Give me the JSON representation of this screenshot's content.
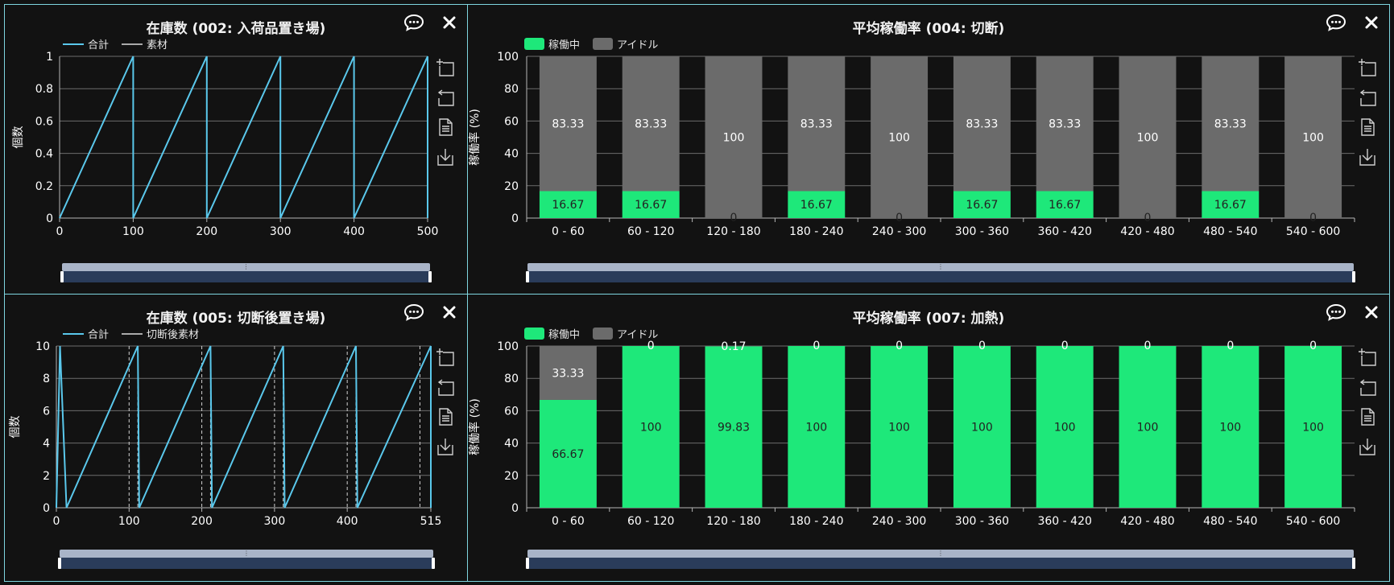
{
  "icons": {
    "comment": "comment-icon",
    "close": "close-icon",
    "zoom": "zoom-icon",
    "reset": "reset-icon",
    "data": "data-view-icon",
    "save": "save-image-icon"
  },
  "colors": {
    "line": "#5ac8ec",
    "running": "#1ee87a",
    "idle": "#6b6b6b",
    "border": "#7fd6e0"
  },
  "panels": [
    {
      "title": "在庫数 (002: 入荷品置き場)",
      "legend": [
        {
          "label": "合計",
          "color": "#5ac8ec"
        },
        {
          "label": "素材",
          "color": "#aaaaaa"
        }
      ],
      "chart_data": {
        "type": "line",
        "ylabel": "個数",
        "xlim": [
          0,
          500
        ],
        "ylim": [
          0,
          1
        ],
        "xticks": [
          0,
          100,
          200,
          300,
          400,
          500
        ],
        "yticks": [
          0,
          0.2,
          0.4,
          0.6,
          0.8,
          1
        ],
        "series": [
          {
            "name": "合計",
            "points": [
              [
                0,
                0
              ],
              [
                100,
                1
              ],
              [
                100,
                0
              ],
              [
                200,
                1
              ],
              [
                200,
                0
              ],
              [
                300,
                1
              ],
              [
                300,
                0
              ],
              [
                400,
                1
              ],
              [
                400,
                0
              ],
              [
                500,
                1
              ],
              [
                500,
                0
              ]
            ]
          }
        ],
        "vlines": []
      }
    },
    {
      "title": "平均稼働率 (004: 切断)",
      "legend": [
        {
          "label": "稼働中",
          "color": "#1ee87a"
        },
        {
          "label": "アイドル",
          "color": "#6b6b6b"
        }
      ],
      "chart_data": {
        "type": "bar",
        "ylabel": "稼働率 (%)",
        "ylim": [
          0,
          100
        ],
        "yticks": [
          0,
          20,
          40,
          60,
          80,
          100
        ],
        "categories": [
          "0 - 60",
          "60 - 120",
          "120 - 180",
          "180 - 240",
          "240 - 300",
          "300 - 360",
          "360 - 420",
          "420 - 480",
          "480 - 540",
          "540 - 600"
        ],
        "series": [
          {
            "name": "稼働中",
            "values": [
              16.67,
              16.67,
              0,
              16.67,
              0,
              16.67,
              16.67,
              0,
              16.67,
              0
            ],
            "labels": [
              "16.67",
              "16.67",
              "0",
              "16.67",
              "0",
              "16.67",
              "16.67",
              "0",
              "16.67",
              "0"
            ]
          },
          {
            "name": "アイドル",
            "values": [
              83.33,
              83.33,
              100,
              83.33,
              100,
              83.33,
              83.33,
              100,
              83.33,
              100
            ],
            "labels": [
              "83.33",
              "83.33",
              "100",
              "83.33",
              "100",
              "83.33",
              "83.33",
              "100",
              "83.33",
              "100"
            ]
          }
        ]
      }
    },
    {
      "title": "在庫数 (005: 切断後置き場)",
      "legend": [
        {
          "label": "合計",
          "color": "#5ac8ec"
        },
        {
          "label": "切断後素材",
          "color": "#aaaaaa"
        }
      ],
      "chart_data": {
        "type": "line",
        "ylabel": "個数",
        "xlim": [
          0,
          515
        ],
        "ylim": [
          0,
          10
        ],
        "xticks": [
          0,
          100,
          200,
          300,
          400,
          515
        ],
        "yticks": [
          0,
          2,
          4,
          6,
          8,
          10
        ],
        "series": [
          {
            "name": "合計",
            "points": [
              [
                0,
                0
              ],
              [
                5,
                10
              ],
              [
                5,
                10
              ],
              [
                14,
                0
              ],
              [
                112,
                10
              ],
              [
                114,
                0
              ],
              [
                212,
                10
              ],
              [
                214,
                0
              ],
              [
                312,
                10
              ],
              [
                314,
                0
              ],
              [
                412,
                10
              ],
              [
                414,
                0
              ],
              [
                515,
                10
              ],
              [
                515,
                0
              ]
            ]
          }
        ],
        "vlines": [
          100,
          112,
          200,
          212,
          300,
          312,
          400,
          412,
          500,
          515
        ]
      }
    },
    {
      "title": "平均稼働率 (007: 加熱)",
      "legend": [
        {
          "label": "稼働中",
          "color": "#1ee87a"
        },
        {
          "label": "アイドル",
          "color": "#6b6b6b"
        }
      ],
      "chart_data": {
        "type": "bar",
        "ylabel": "稼働率 (%)",
        "ylim": [
          0,
          100
        ],
        "yticks": [
          0,
          20,
          40,
          60,
          80,
          100
        ],
        "categories": [
          "0 - 60",
          "60 - 120",
          "120 - 180",
          "180 - 240",
          "240 - 300",
          "300 - 360",
          "360 - 420",
          "420 - 480",
          "480 - 540",
          "540 - 600"
        ],
        "series": [
          {
            "name": "稼働中",
            "values": [
              66.67,
              100,
              99.83,
              100,
              100,
              100,
              100,
              100,
              100,
              100
            ],
            "labels": [
              "66.67",
              "100",
              "99.83",
              "100",
              "100",
              "100",
              "100",
              "100",
              "100",
              "100"
            ]
          },
          {
            "name": "アイドル",
            "values": [
              33.33,
              0,
              0.17,
              0,
              0,
              0,
              0,
              0,
              0,
              0
            ],
            "labels": [
              "33.33",
              "0",
              "0.17",
              "0",
              "0",
              "0",
              "0",
              "0",
              "0",
              "0"
            ]
          }
        ]
      }
    }
  ]
}
